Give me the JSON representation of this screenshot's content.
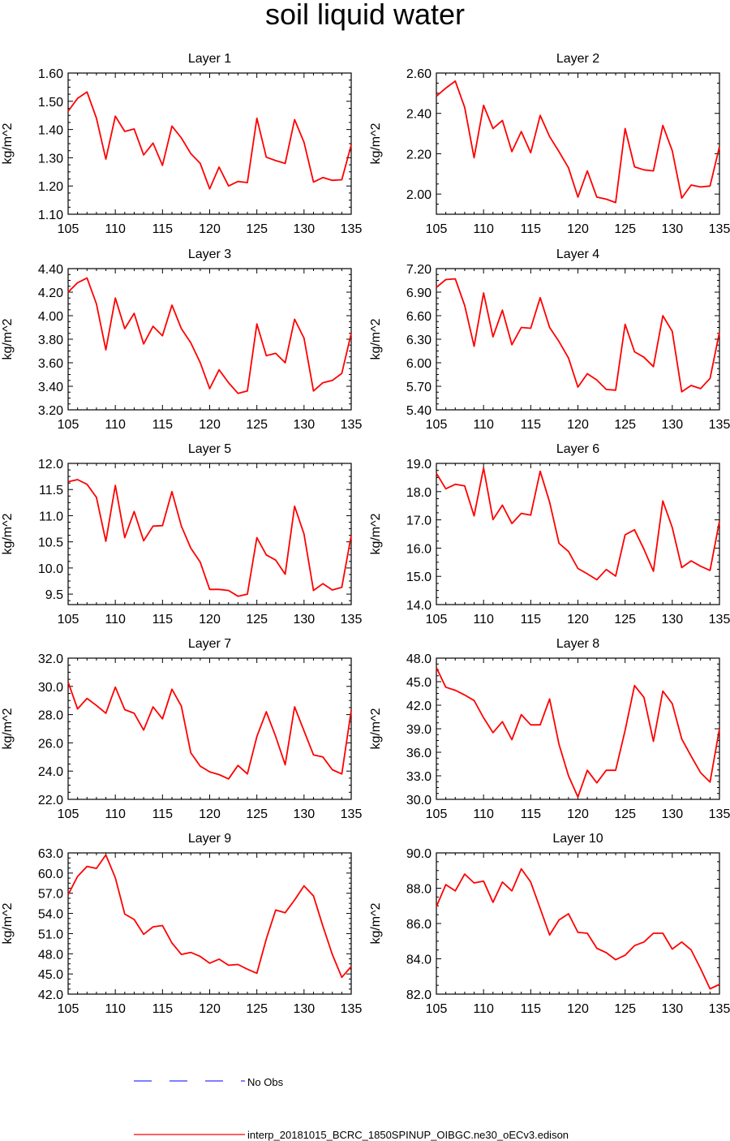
{
  "title": "soil liquid water",
  "legend": {
    "obs_label": "No Obs",
    "obs_color": "#3333ff",
    "model_label": "interp_20181015_BCRC_1850SPINUP_OIBGC.ne30_oECv3.edison",
    "model_color": "#ff0000"
  },
  "chart_data": [
    {
      "type": "line",
      "title": "Layer 1",
      "xlabel": "",
      "ylabel": "kg/m^2",
      "xlim": [
        105,
        135
      ],
      "ylim": [
        1.1,
        1.6
      ],
      "xticks": [
        "105",
        "110",
        "115",
        "120",
        "125",
        "130",
        "135"
      ],
      "yticks": [
        "1.10",
        "1.20",
        "1.30",
        "1.40",
        "1.50",
        "1.60"
      ],
      "x": [
        105,
        106,
        107,
        108,
        109,
        110,
        111,
        112,
        113,
        114,
        115,
        116,
        117,
        118,
        119,
        120,
        121,
        122,
        123,
        124,
        125,
        126,
        127,
        128,
        129,
        130,
        131,
        132,
        133,
        134,
        135
      ],
      "values": [
        1.465,
        1.51,
        1.533,
        1.44,
        1.295,
        1.447,
        1.393,
        1.402,
        1.31,
        1.352,
        1.273,
        1.412,
        1.37,
        1.315,
        1.28,
        1.19,
        1.267,
        1.2,
        1.216,
        1.212,
        1.44,
        1.302,
        1.29,
        1.28,
        1.435,
        1.355,
        1.214,
        1.23,
        1.22,
        1.222,
        1.345
      ]
    },
    {
      "type": "line",
      "title": "Layer 2",
      "xlabel": "",
      "ylabel": "kg/m^2",
      "xlim": [
        105,
        135
      ],
      "ylim": [
        1.9,
        2.6
      ],
      "xticks": [
        "105",
        "110",
        "115",
        "120",
        "125",
        "130",
        "135"
      ],
      "yticks": [
        "2.00",
        "2.20",
        "2.40",
        "2.60"
      ],
      "x": [
        105,
        106,
        107,
        108,
        109,
        110,
        111,
        112,
        113,
        114,
        115,
        116,
        117,
        118,
        119,
        120,
        121,
        122,
        123,
        124,
        125,
        126,
        127,
        128,
        129,
        130,
        131,
        132,
        133,
        134,
        135
      ],
      "values": [
        2.485,
        2.525,
        2.56,
        2.43,
        2.18,
        2.44,
        2.325,
        2.365,
        2.21,
        2.31,
        2.205,
        2.39,
        2.285,
        2.21,
        2.13,
        1.985,
        2.115,
        1.985,
        1.975,
        1.958,
        2.325,
        2.135,
        2.12,
        2.115,
        2.34,
        2.215,
        1.98,
        2.045,
        2.035,
        2.04,
        2.235
      ]
    },
    {
      "type": "line",
      "title": "Layer 3",
      "xlabel": "",
      "ylabel": "kg/m^2",
      "xlim": [
        105,
        135
      ],
      "ylim": [
        3.2,
        4.4
      ],
      "xticks": [
        "105",
        "110",
        "115",
        "120",
        "125",
        "130",
        "135"
      ],
      "yticks": [
        "3.20",
        "3.40",
        "3.60",
        "3.80",
        "4.00",
        "4.20",
        "4.40"
      ],
      "x": [
        105,
        106,
        107,
        108,
        109,
        110,
        111,
        112,
        113,
        114,
        115,
        116,
        117,
        118,
        119,
        120,
        121,
        122,
        123,
        124,
        125,
        126,
        127,
        128,
        129,
        130,
        131,
        132,
        133,
        134,
        135
      ],
      "values": [
        4.2,
        4.28,
        4.32,
        4.1,
        3.71,
        4.15,
        3.89,
        4.02,
        3.76,
        3.91,
        3.83,
        4.09,
        3.89,
        3.77,
        3.6,
        3.38,
        3.54,
        3.43,
        3.34,
        3.36,
        3.93,
        3.66,
        3.68,
        3.6,
        3.97,
        3.81,
        3.36,
        3.43,
        3.45,
        3.51,
        3.85
      ]
    },
    {
      "type": "line",
      "title": "Layer 4",
      "xlabel": "",
      "ylabel": "kg/m^2",
      "xlim": [
        105,
        135
      ],
      "ylim": [
        5.4,
        7.2
      ],
      "xticks": [
        "105",
        "110",
        "115",
        "120",
        "125",
        "130",
        "135"
      ],
      "yticks": [
        "5.40",
        "5.70",
        "6.00",
        "6.30",
        "6.60",
        "6.90",
        "7.20"
      ],
      "x": [
        105,
        106,
        107,
        108,
        109,
        110,
        111,
        112,
        113,
        114,
        115,
        116,
        117,
        118,
        119,
        120,
        121,
        122,
        123,
        124,
        125,
        126,
        127,
        128,
        129,
        130,
        131,
        132,
        133,
        134,
        135
      ],
      "values": [
        6.96,
        7.06,
        7.07,
        6.73,
        6.21,
        6.89,
        6.33,
        6.67,
        6.23,
        6.45,
        6.44,
        6.83,
        6.45,
        6.27,
        6.06,
        5.69,
        5.86,
        5.78,
        5.66,
        5.65,
        6.49,
        6.14,
        6.07,
        5.95,
        6.6,
        6.4,
        5.63,
        5.71,
        5.67,
        5.8,
        6.39
      ]
    },
    {
      "type": "line",
      "title": "Layer 5",
      "xlabel": "",
      "ylabel": "kg/m^2",
      "xlim": [
        105,
        135
      ],
      "ylim": [
        9.3,
        12.0
      ],
      "xticks": [
        "105",
        "110",
        "115",
        "120",
        "125",
        "130",
        "135"
      ],
      "yticks": [
        "9.5",
        "10.0",
        "10.5",
        "11.0",
        "11.5",
        "12.0"
      ],
      "x": [
        105,
        106,
        107,
        108,
        109,
        110,
        111,
        112,
        113,
        114,
        115,
        116,
        117,
        118,
        119,
        120,
        121,
        122,
        123,
        124,
        125,
        126,
        127,
        128,
        129,
        130,
        131,
        132,
        133,
        134,
        135
      ],
      "values": [
        11.65,
        11.69,
        11.6,
        11.35,
        10.51,
        11.58,
        10.58,
        11.08,
        10.52,
        10.8,
        10.81,
        11.46,
        10.8,
        10.38,
        10.11,
        9.59,
        9.59,
        9.57,
        9.46,
        9.5,
        10.58,
        10.25,
        10.15,
        9.88,
        11.18,
        10.65,
        9.57,
        9.7,
        9.58,
        9.63,
        10.62
      ]
    },
    {
      "type": "line",
      "title": "Layer 6",
      "xlabel": "",
      "ylabel": "kg/m^2",
      "xlim": [
        105,
        135
      ],
      "ylim": [
        14.0,
        19.0
      ],
      "xticks": [
        "105",
        "110",
        "115",
        "120",
        "125",
        "130",
        "135"
      ],
      "yticks": [
        "14.0",
        "15.0",
        "16.0",
        "17.0",
        "18.0",
        "19.0"
      ],
      "x": [
        105,
        106,
        107,
        108,
        109,
        110,
        111,
        112,
        113,
        114,
        115,
        116,
        117,
        118,
        119,
        120,
        121,
        122,
        123,
        124,
        125,
        126,
        127,
        128,
        129,
        130,
        131,
        132,
        133,
        134,
        135
      ],
      "values": [
        18.65,
        18.1,
        18.26,
        18.2,
        17.14,
        18.84,
        17.01,
        17.52,
        16.87,
        17.23,
        17.17,
        18.72,
        17.63,
        16.17,
        15.88,
        15.28,
        15.09,
        14.88,
        15.24,
        15.01,
        16.47,
        16.65,
        15.96,
        15.18,
        17.67,
        16.73,
        15.31,
        15.55,
        15.36,
        15.21,
        16.95
      ]
    },
    {
      "type": "line",
      "title": "Layer 7",
      "xlabel": "",
      "ylabel": "kg/m^2",
      "xlim": [
        105,
        135
      ],
      "ylim": [
        22.0,
        32.0
      ],
      "xticks": [
        "105",
        "110",
        "115",
        "120",
        "125",
        "130",
        "135"
      ],
      "yticks": [
        "22.0",
        "24.0",
        "26.0",
        "28.0",
        "30.0",
        "32.0"
      ],
      "x": [
        105,
        106,
        107,
        108,
        109,
        110,
        111,
        112,
        113,
        114,
        115,
        116,
        117,
        118,
        119,
        120,
        121,
        122,
        123,
        124,
        125,
        126,
        127,
        128,
        129,
        130,
        131,
        132,
        133,
        134,
        135
      ],
      "values": [
        30.3,
        28.4,
        29.15,
        28.65,
        28.1,
        29.95,
        28.35,
        28.1,
        26.9,
        28.55,
        27.7,
        29.8,
        28.6,
        25.3,
        24.35,
        23.95,
        23.75,
        23.45,
        24.4,
        23.8,
        26.45,
        28.2,
        26.45,
        24.45,
        28.55,
        26.85,
        25.15,
        25.0,
        24.1,
        23.8,
        28.3
      ]
    },
    {
      "type": "line",
      "title": "Layer 8",
      "xlabel": "",
      "ylabel": "kg/m^2",
      "xlim": [
        105,
        135
      ],
      "ylim": [
        30.0,
        48.0
      ],
      "xticks": [
        "105",
        "110",
        "115",
        "120",
        "125",
        "130",
        "135"
      ],
      "yticks": [
        "30.0",
        "33.0",
        "36.0",
        "39.0",
        "42.0",
        "45.0",
        "48.0"
      ],
      "x": [
        105,
        106,
        107,
        108,
        109,
        110,
        111,
        112,
        113,
        114,
        115,
        116,
        117,
        118,
        119,
        120,
        121,
        122,
        123,
        124,
        125,
        126,
        127,
        128,
        129,
        130,
        131,
        132,
        133,
        134,
        135
      ],
      "values": [
        46.8,
        44.3,
        43.9,
        43.3,
        42.6,
        40.4,
        38.5,
        39.9,
        37.6,
        40.8,
        39.5,
        39.5,
        42.8,
        37.0,
        33.0,
        30.3,
        33.7,
        32.1,
        33.7,
        33.7,
        38.8,
        44.5,
        43.0,
        37.4,
        43.8,
        42.2,
        37.7,
        35.5,
        33.4,
        32.2,
        39.0
      ]
    },
    {
      "type": "line",
      "title": "Layer 9",
      "xlabel": "",
      "ylabel": "kg/m^2",
      "xlim": [
        105,
        135
      ],
      "ylim": [
        42.0,
        63.0
      ],
      "xticks": [
        "105",
        "110",
        "115",
        "120",
        "125",
        "130",
        "135"
      ],
      "yticks": [
        "42.0",
        "45.0",
        "48.0",
        "51.0",
        "54.0",
        "57.0",
        "60.0",
        "63.0"
      ],
      "x": [
        105,
        106,
        107,
        108,
        109,
        110,
        111,
        112,
        113,
        114,
        115,
        116,
        117,
        118,
        119,
        120,
        121,
        122,
        123,
        124,
        125,
        126,
        127,
        128,
        129,
        130,
        131,
        132,
        133,
        134,
        135
      ],
      "values": [
        56.8,
        59.5,
        61.0,
        60.7,
        62.7,
        59.3,
        53.9,
        53.1,
        50.9,
        52.0,
        52.2,
        49.6,
        47.9,
        48.2,
        47.6,
        46.6,
        47.2,
        46.3,
        46.4,
        45.7,
        45.1,
        50.2,
        54.5,
        54.1,
        56.0,
        58.1,
        56.6,
        52.1,
        47.9,
        44.5,
        46.1
      ]
    },
    {
      "type": "line",
      "title": "Layer 10",
      "xlabel": "",
      "ylabel": "kg/m^2",
      "xlim": [
        105,
        135
      ],
      "ylim": [
        82.0,
        90.0
      ],
      "xticks": [
        "105",
        "110",
        "115",
        "120",
        "125",
        "130",
        "135"
      ],
      "yticks": [
        "82.0",
        "84.0",
        "86.0",
        "88.0",
        "90.0"
      ],
      "x": [
        105,
        106,
        107,
        108,
        109,
        110,
        111,
        112,
        113,
        114,
        115,
        116,
        117,
        118,
        119,
        120,
        121,
        122,
        123,
        124,
        125,
        126,
        127,
        128,
        129,
        130,
        131,
        132,
        133,
        134,
        135
      ],
      "values": [
        86.95,
        88.2,
        87.85,
        88.8,
        88.3,
        88.4,
        87.2,
        88.35,
        87.85,
        89.1,
        88.35,
        86.85,
        85.35,
        86.2,
        86.55,
        85.5,
        85.45,
        84.6,
        84.35,
        83.95,
        84.2,
        84.75,
        84.95,
        85.45,
        85.45,
        84.55,
        84.95,
        84.5,
        83.45,
        82.3,
        82.55
      ]
    }
  ]
}
